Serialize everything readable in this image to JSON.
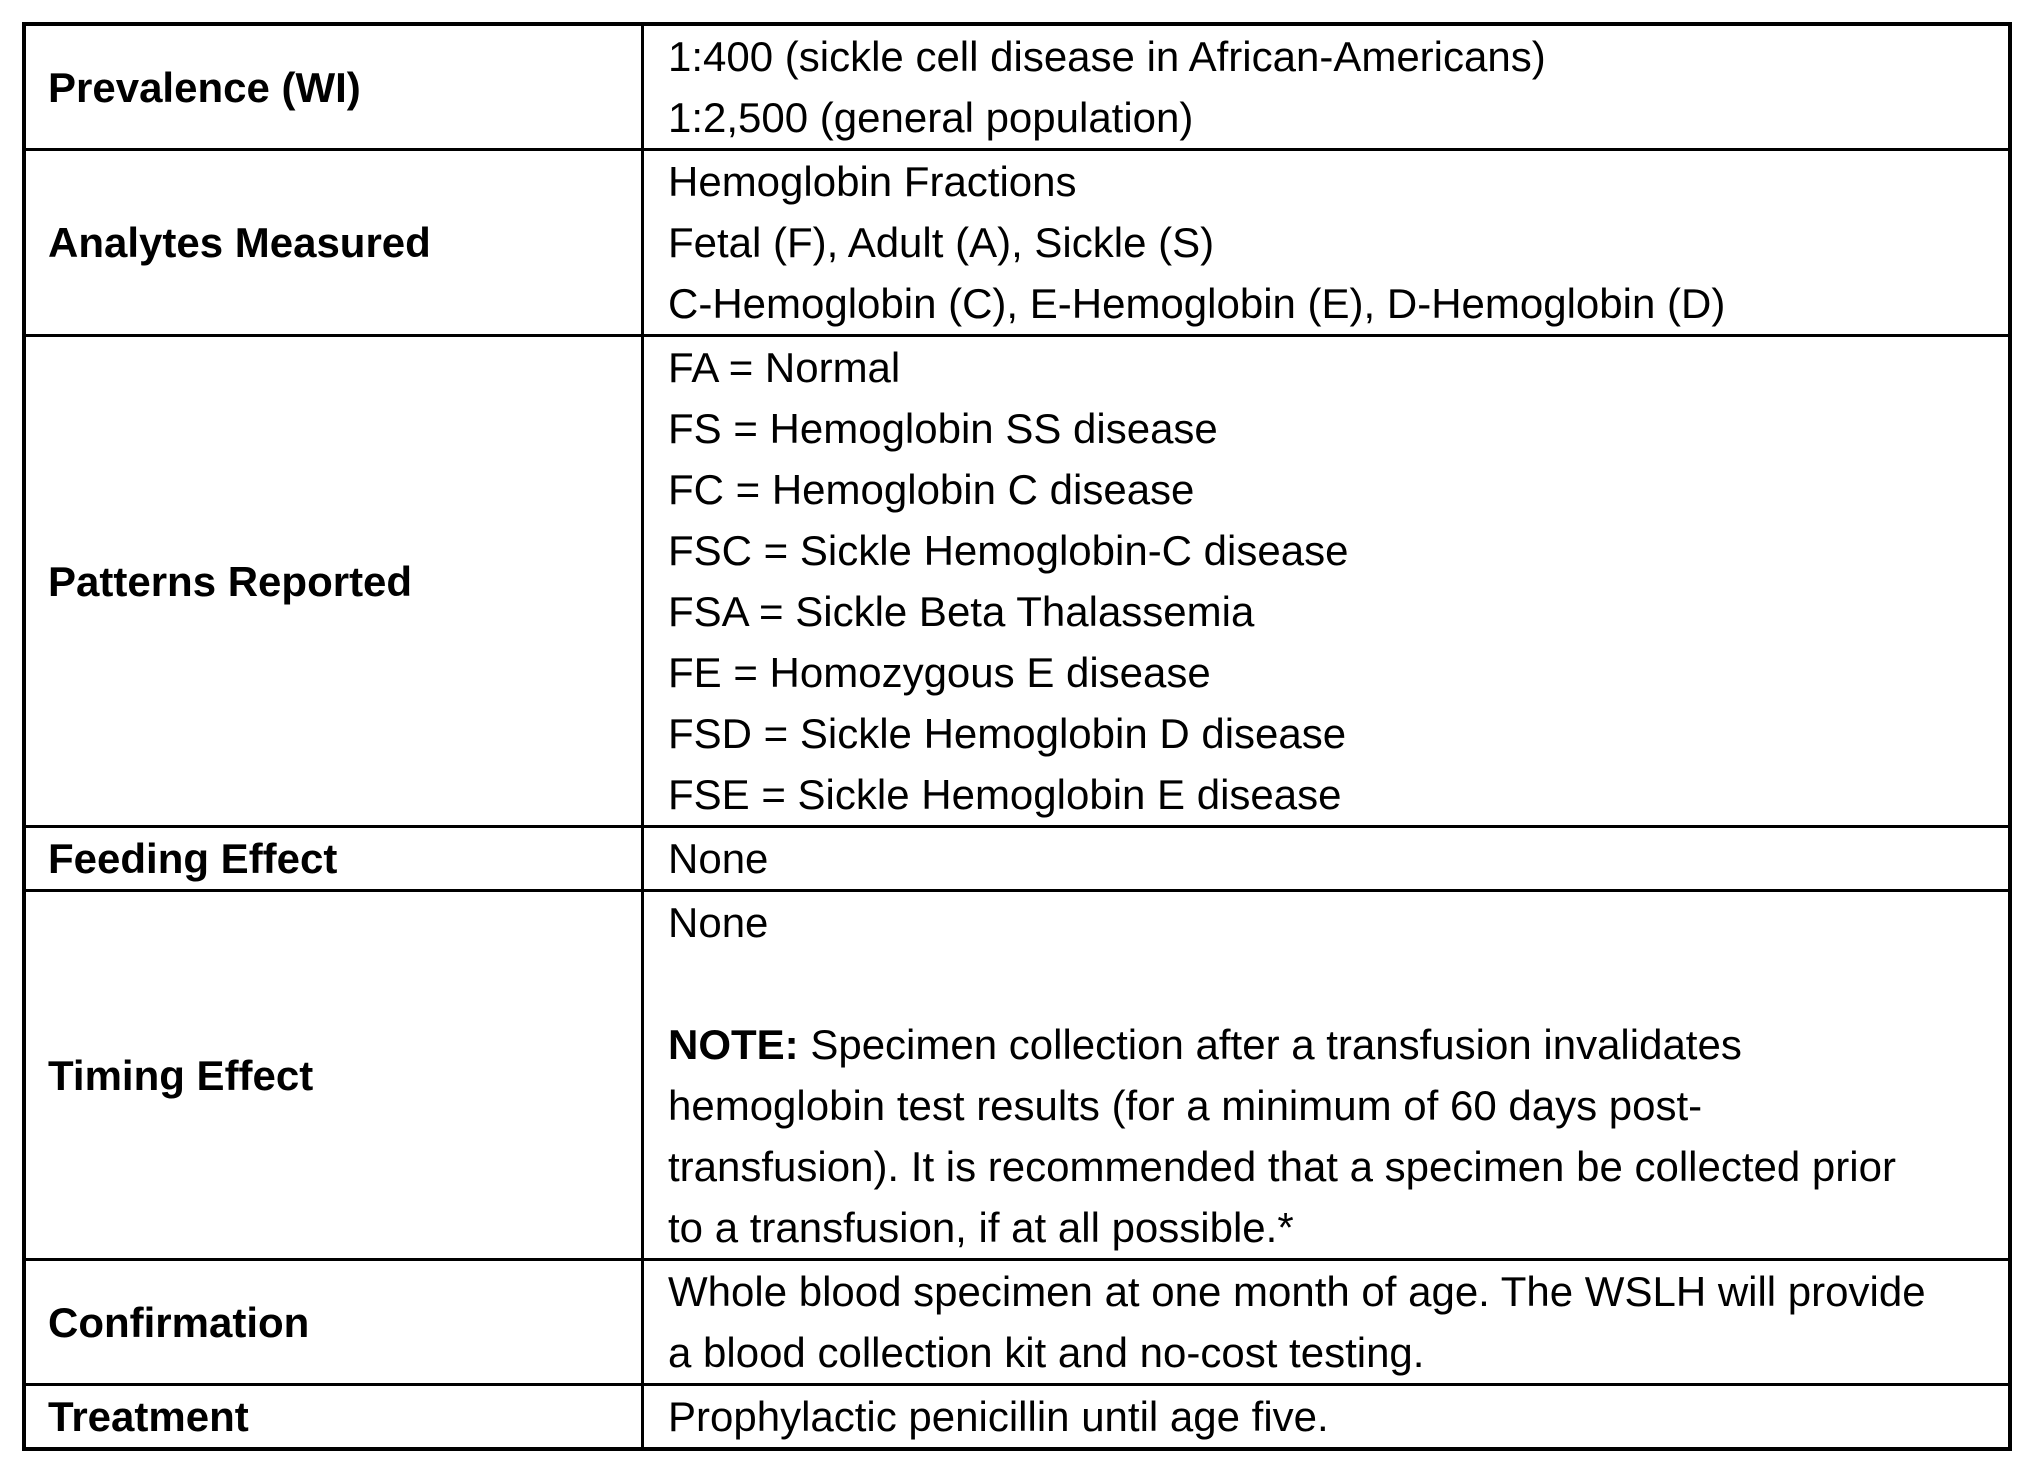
{
  "document": {
    "background_color": "#ffffff",
    "border_color": "#000000",
    "text_color": "#000000"
  },
  "table": {
    "rows": [
      {
        "label": "Prevalence (WI)",
        "lines": [
          {
            "b": "",
            "t": "1:400 (sickle cell disease in African-Americans)"
          },
          {
            "b": "",
            "t": "1:2,500 (general population)"
          }
        ]
      },
      {
        "label": "Analytes Measured",
        "lines": [
          {
            "b": "",
            "t": "Hemoglobin Fractions"
          },
          {
            "b": "",
            "t": "Fetal (F), Adult (A), Sickle (S)"
          },
          {
            "b": "",
            "t": "C-Hemoglobin (C), E-Hemoglobin (E), D-Hemoglobin (D)"
          }
        ]
      },
      {
        "label": "Patterns Reported",
        "lines": [
          {
            "b": "",
            "t": "FA = Normal"
          },
          {
            "b": "",
            "t": "FS = Hemoglobin SS disease"
          },
          {
            "b": "",
            "t": "FC = Hemoglobin C disease"
          },
          {
            "b": "",
            "t": "FSC = Sickle Hemoglobin-C disease"
          },
          {
            "b": "",
            "t": "FSA = Sickle Beta Thalassemia"
          },
          {
            "b": "",
            "t": "FE = Homozygous E disease"
          },
          {
            "b": "",
            "t": "FSD = Sickle Hemoglobin D disease"
          },
          {
            "b": "",
            "t": "FSE = Sickle Hemoglobin E disease"
          }
        ]
      },
      {
        "label": "Feeding Effect",
        "lines": [
          {
            "b": "",
            "t": "None"
          }
        ]
      },
      {
        "label": "Timing Effect",
        "lines": [
          {
            "b": "",
            "t": "None"
          },
          {
            "b": "",
            "t": ""
          },
          {
            "b": "NOTE:",
            "t": " Specimen collection after a transfusion invalidates"
          },
          {
            "b": "",
            "t": "hemoglobin test results (for a minimum of 60 days post-"
          },
          {
            "b": "",
            "t": "transfusion). It is recommended that a specimen be collected prior"
          },
          {
            "b": "",
            "t": "to a transfusion, if at all possible.*"
          }
        ]
      },
      {
        "label": "Confirmation",
        "lines": [
          {
            "b": "",
            "t": "Whole blood specimen at one month of age. The WSLH will provide"
          },
          {
            "b": "",
            "t": "a blood collection kit and no-cost testing."
          }
        ]
      },
      {
        "label": "Treatment",
        "lines": [
          {
            "b": "",
            "t": "Prophylactic penicillin until age five."
          }
        ]
      }
    ]
  }
}
